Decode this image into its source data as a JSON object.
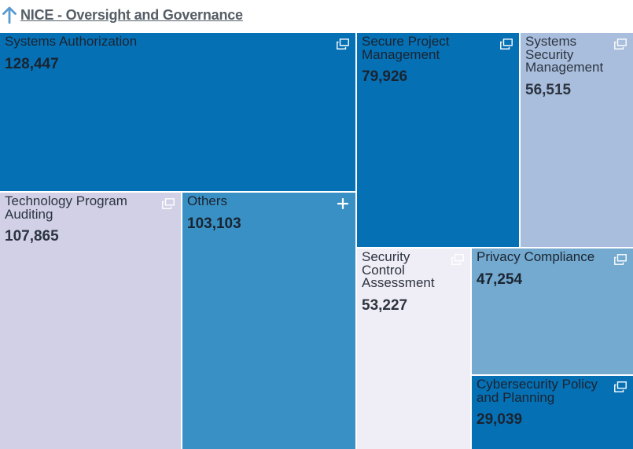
{
  "header": {
    "title": "NICE - Oversight and Governance",
    "back_icon": "arrow-up-icon"
  },
  "chart_data": {
    "type": "treemap",
    "title": "NICE - Oversight and Governance",
    "items": [
      {
        "label": "Systems Authorization",
        "value": 128447,
        "display": "128,447",
        "color": "#0670b5",
        "text_color": "#1a2430",
        "icon": "expand-window-icon"
      },
      {
        "label": "Secure Project Management",
        "value": 79926,
        "display": "79,926",
        "color": "#0670b5",
        "text_color": "#1a2430",
        "icon": "expand-window-icon"
      },
      {
        "label": "Systems Security Management",
        "value": 56515,
        "display": "56,515",
        "color": "#a9bedc",
        "text_color": "#2c3440",
        "icon": "expand-window-icon"
      },
      {
        "label": "Technology Program Auditing",
        "value": 107865,
        "display": "107,865",
        "color": "#d1d0e6",
        "text_color": "#2c3440",
        "icon": "expand-window-icon"
      },
      {
        "label": "Others",
        "value": 103103,
        "display": "103,103",
        "color": "#3990c4",
        "text_color": "#1a2430",
        "icon": "plus-icon"
      },
      {
        "label": "Security Control Assessment",
        "value": 53227,
        "display": "53,227",
        "color": "#efedf5",
        "text_color": "#2c3440",
        "icon": "expand-window-icon"
      },
      {
        "label": "Privacy Compliance",
        "value": 47254,
        "display": "47,254",
        "color": "#74a9d0",
        "text_color": "#1a2430",
        "icon": "expand-window-icon"
      },
      {
        "label": "Cybersecurity Policy and Planning",
        "value": 29039,
        "display": "29,039",
        "color": "#0670b5",
        "text_color": "#1a2430",
        "icon": "expand-window-icon"
      }
    ]
  }
}
